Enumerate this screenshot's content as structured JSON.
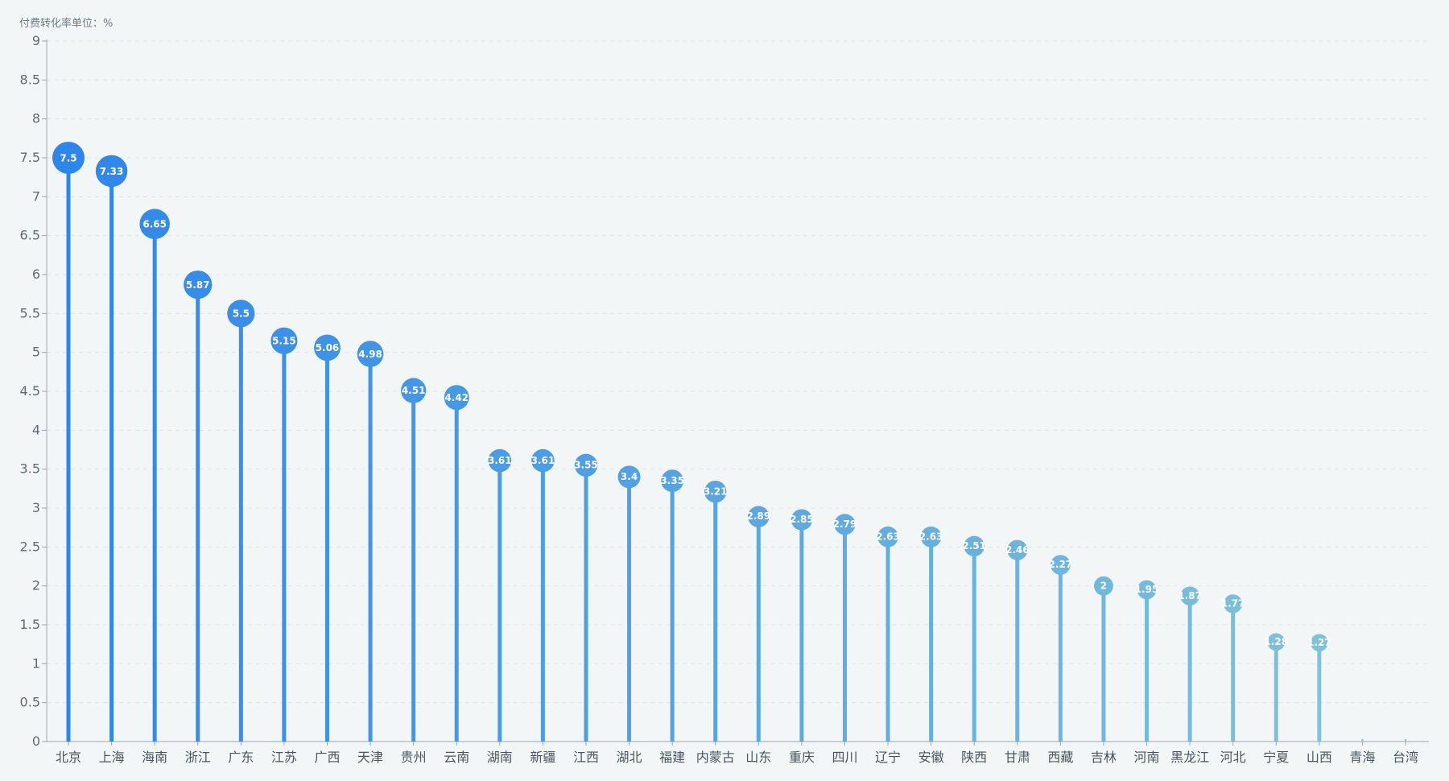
{
  "chart_data": {
    "type": "bar",
    "style": "lollipop",
    "unit_label": "付费转化率单位：%",
    "categories": [
      "北京",
      "上海",
      "海南",
      "浙江",
      "广东",
      "江苏",
      "广西",
      "天津",
      "贵州",
      "云南",
      "湖南",
      "新疆",
      "江西",
      "湖北",
      "福建",
      "内蒙古",
      "山东",
      "重庆",
      "四川",
      "辽宁",
      "安徽",
      "陕西",
      "甘肃",
      "西藏",
      "吉林",
      "河南",
      "黑龙江",
      "河北",
      "宁夏",
      "山西",
      "青海",
      "台湾"
    ],
    "values": [
      7.5,
      7.33,
      6.65,
      5.87,
      5.5,
      5.15,
      5.06,
      4.98,
      4.51,
      4.42,
      3.61,
      3.61,
      3.55,
      3.4,
      3.35,
      3.21,
      2.89,
      2.85,
      2.79,
      2.63,
      2.63,
      2.51,
      2.46,
      2.27,
      2,
      1.95,
      1.87,
      1.77,
      1.28,
      1.27,
      0,
      0
    ],
    "labels": [
      "7.5",
      "7.33",
      "6.65",
      "5.87",
      "5.5",
      "5.15",
      "5.06",
      "4.98",
      "4.51",
      "4.42",
      "3.61",
      "3.61",
      "3.55",
      "3.4",
      "3.35",
      "3.21",
      "2.89",
      "2.85",
      "2.79",
      "2.63",
      "2.63",
      "2.51",
      "2.46",
      "2.27",
      "2",
      "1.95",
      "1.87",
      "1.77",
      "1.28",
      "1.27",
      "",
      ""
    ],
    "y_ticks": [
      "0",
      "0.5",
      "1",
      "1.5",
      "2",
      "2.5",
      "3",
      "3.5",
      "4",
      "4.5",
      "5",
      "5.5",
      "6",
      "6.5",
      "7",
      "7.5",
      "8",
      "8.5",
      "9"
    ],
    "ylim": [
      0,
      9
    ],
    "grid": "horizontal-dashed",
    "colors": {
      "high": "#2f86ea",
      "low": "#86c6d9",
      "axis": "#9aa5ad",
      "grid": "#dfe5e8",
      "background": "#f3f6f7"
    }
  }
}
